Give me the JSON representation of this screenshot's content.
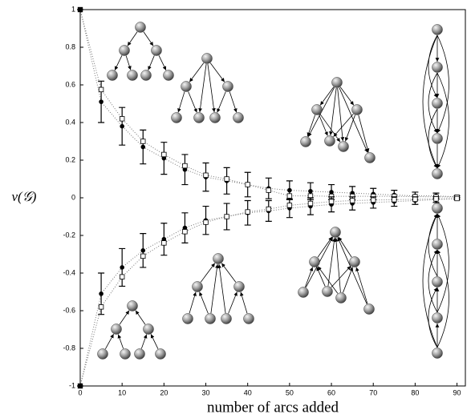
{
  "chart_data": {
    "type": "scatter",
    "x_label": "number of arcs added",
    "y_label": "ν(𝒢)",
    "xlim": [
      0,
      92
    ],
    "ylim": [
      -1,
      1
    ],
    "xticks": [
      0,
      10,
      20,
      30,
      40,
      50,
      60,
      70,
      80,
      90
    ],
    "yticks": [
      -1,
      -0.8,
      -0.6,
      -0.4,
      -0.2,
      0,
      0.2,
      0.4,
      0.6,
      0.8,
      1
    ],
    "x": [
      0,
      5,
      10,
      15,
      20,
      25,
      30,
      35,
      40,
      45,
      50,
      55,
      60,
      65,
      70,
      75,
      80,
      85,
      90
    ],
    "series": [
      {
        "marker": "circle",
        "color": "#000000",
        "values": [
          1,
          0.51,
          0.38,
          0.27,
          0.21,
          0.15,
          0.11,
          0.09,
          0.07,
          0.05,
          0.04,
          0.035,
          0.03,
          0.025,
          0.02,
          0.015,
          0.01,
          0.01,
          0.005
        ],
        "errors": [
          0,
          0.11,
          0.1,
          0.09,
          0.085,
          0.08,
          0.075,
          0.07,
          0.065,
          0.055,
          0.05,
          0.045,
          0.04,
          0.035,
          0.03,
          0.025,
          0.02,
          0.015,
          0.005
        ]
      },
      {
        "marker": "square",
        "color": "#000000",
        "values": [
          1,
          0.575,
          0.42,
          0.3,
          0.23,
          0.17,
          0.12,
          0.1,
          0.07,
          0.04,
          0.01,
          0.01,
          0.008,
          0.008,
          0.008,
          0.008,
          0.006,
          0.005,
          0.004
        ]
      },
      {
        "marker": "circle",
        "color": "#000000",
        "values": [
          -1,
          -0.51,
          -0.37,
          -0.28,
          -0.22,
          -0.16,
          -0.12,
          -0.1,
          -0.08,
          -0.07,
          -0.055,
          -0.045,
          -0.035,
          -0.03,
          -0.025,
          -0.02,
          -0.015,
          -0.01,
          -0.005
        ],
        "errors": [
          0,
          0.11,
          0.1,
          0.09,
          0.085,
          0.08,
          0.075,
          0.07,
          0.065,
          0.055,
          0.05,
          0.045,
          0.04,
          0.035,
          0.03,
          0.025,
          0.02,
          0.015,
          0.005
        ]
      },
      {
        "marker": "square",
        "color": "#000000",
        "values": [
          -1,
          -0.58,
          -0.42,
          -0.31,
          -0.24,
          -0.18,
          -0.13,
          -0.1,
          -0.075,
          -0.06,
          -0.04,
          -0.03,
          -0.02,
          -0.015,
          -0.012,
          -0.01,
          -0.008,
          -0.006,
          -0.004
        ]
      }
    ]
  }
}
